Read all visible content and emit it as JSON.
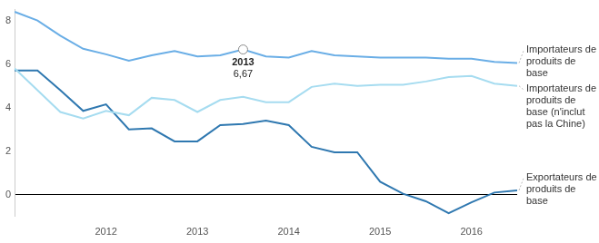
{
  "chart_data": {
    "type": "line",
    "categories": [
      null,
      null,
      null,
      null,
      "2012",
      null,
      null,
      null,
      "2013",
      null,
      null,
      null,
      "2014",
      null,
      null,
      null,
      "2015",
      null,
      null,
      null,
      "2016",
      null,
      null
    ],
    "series": [
      {
        "name": "Importateurs de produits de base",
        "color": "#6aaee6",
        "values": [
          8.4,
          8.0,
          7.3,
          6.7,
          6.45,
          6.15,
          6.4,
          6.6,
          6.35,
          6.4,
          6.67,
          6.35,
          6.3,
          6.6,
          6.4,
          6.35,
          6.3,
          6.3,
          6.3,
          6.25,
          6.25,
          6.1,
          6.05
        ]
      },
      {
        "name": "Importateurs de produits de base (n'inclut pas la Chine)",
        "color": "#a6dcf0",
        "values": [
          5.8,
          4.8,
          3.8,
          3.5,
          3.85,
          3.65,
          4.45,
          4.35,
          3.8,
          4.35,
          4.5,
          4.25,
          4.25,
          4.95,
          5.1,
          5.0,
          5.05,
          5.05,
          5.2,
          5.4,
          5.45,
          5.1,
          5.0
        ]
      },
      {
        "name": "Exportateurs de produits de base",
        "color": "#2f78b0",
        "values": [
          5.7,
          5.7,
          4.8,
          3.85,
          4.15,
          3.0,
          3.05,
          2.45,
          2.45,
          3.2,
          3.25,
          3.4,
          3.2,
          2.2,
          1.95,
          1.95,
          0.6,
          0.05,
          -0.3,
          -0.85,
          -0.35,
          0.1,
          0.2
        ]
      }
    ],
    "ylim": [
      -1,
      8.5
    ],
    "yticks": [
      0,
      2,
      4,
      6,
      8
    ],
    "grid": false,
    "annotations": [
      {
        "series": 0,
        "point": 10,
        "text": [
          "2013",
          "6,67"
        ]
      }
    ]
  }
}
